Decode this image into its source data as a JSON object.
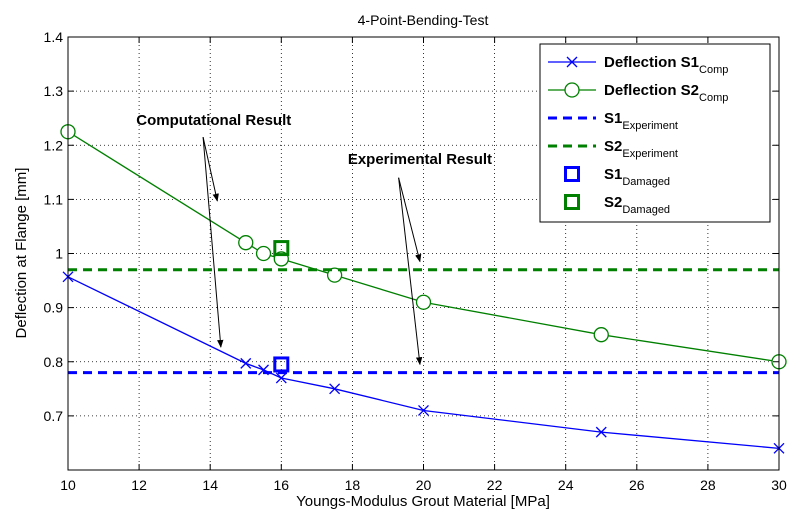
{
  "chart_data": {
    "type": "line",
    "title": "4-Point-Bending-Test",
    "xlabel": "Youngs-Modulus Grout Material [MPa]",
    "ylabel": "Deflection at Flange [mm]",
    "xlim": [
      10,
      30
    ],
    "ylim": [
      0.6,
      1.4
    ],
    "xticks": [
      "10",
      "12",
      "14",
      "16",
      "18",
      "20",
      "22",
      "24",
      "26",
      "28",
      "30"
    ],
    "yticks": [
      "0.7",
      "0.8",
      "0.9",
      "1",
      "1.1",
      "1.2",
      "1.3",
      "1.4"
    ],
    "grid": true,
    "legend_position": "top-right",
    "series": [
      {
        "name": "Deflection S1",
        "name_sub": "Comp",
        "style": "line-x-marker",
        "color": "#0000ff",
        "x": [
          10,
          15,
          15.5,
          16,
          17.5,
          20,
          25,
          30
        ],
        "y": [
          0.957,
          0.797,
          0.785,
          0.77,
          0.75,
          0.71,
          0.67,
          0.64
        ]
      },
      {
        "name": "Deflection S2",
        "name_sub": "Comp",
        "style": "line-circle-marker",
        "color": "#008000",
        "x": [
          10,
          15,
          15.5,
          16,
          17.5,
          20,
          25,
          30
        ],
        "y": [
          1.225,
          1.02,
          1.0,
          0.99,
          0.96,
          0.91,
          0.85,
          0.8
        ]
      },
      {
        "name": "S1",
        "name_sub": "Experiment",
        "style": "dashed",
        "color": "#0000ff",
        "x": [
          10,
          30
        ],
        "y": [
          0.78,
          0.78
        ]
      },
      {
        "name": "S2",
        "name_sub": "Experiment",
        "style": "dashed",
        "color": "#008000",
        "x": [
          10,
          30
        ],
        "y": [
          0.97,
          0.97
        ]
      },
      {
        "name": "S1",
        "name_sub": "Damaged",
        "style": "square-marker",
        "color": "#0000ff",
        "x": [
          16
        ],
        "y": [
          0.795
        ]
      },
      {
        "name": "S2",
        "name_sub": "Damaged",
        "style": "square-marker",
        "color": "#008000",
        "x": [
          16
        ],
        "y": [
          1.01
        ]
      }
    ],
    "annotations": [
      {
        "text": "Computational Result",
        "text_anchor": [
          14.1,
          1.237
        ],
        "arrows": [
          {
            "from": [
              13.8,
              1.215
            ],
            "to": [
              14.2,
              1.097
            ]
          },
          {
            "from": [
              13.8,
              1.215
            ],
            "to": [
              14.3,
              0.827
            ]
          }
        ]
      },
      {
        "text": "Experimental Result",
        "text_anchor": [
          19.9,
          1.165
        ],
        "arrows": [
          {
            "from": [
              19.3,
              1.14
            ],
            "to": [
              19.9,
              0.985
            ]
          },
          {
            "from": [
              19.3,
              1.14
            ],
            "to": [
              19.9,
              0.795
            ]
          }
        ]
      }
    ]
  }
}
